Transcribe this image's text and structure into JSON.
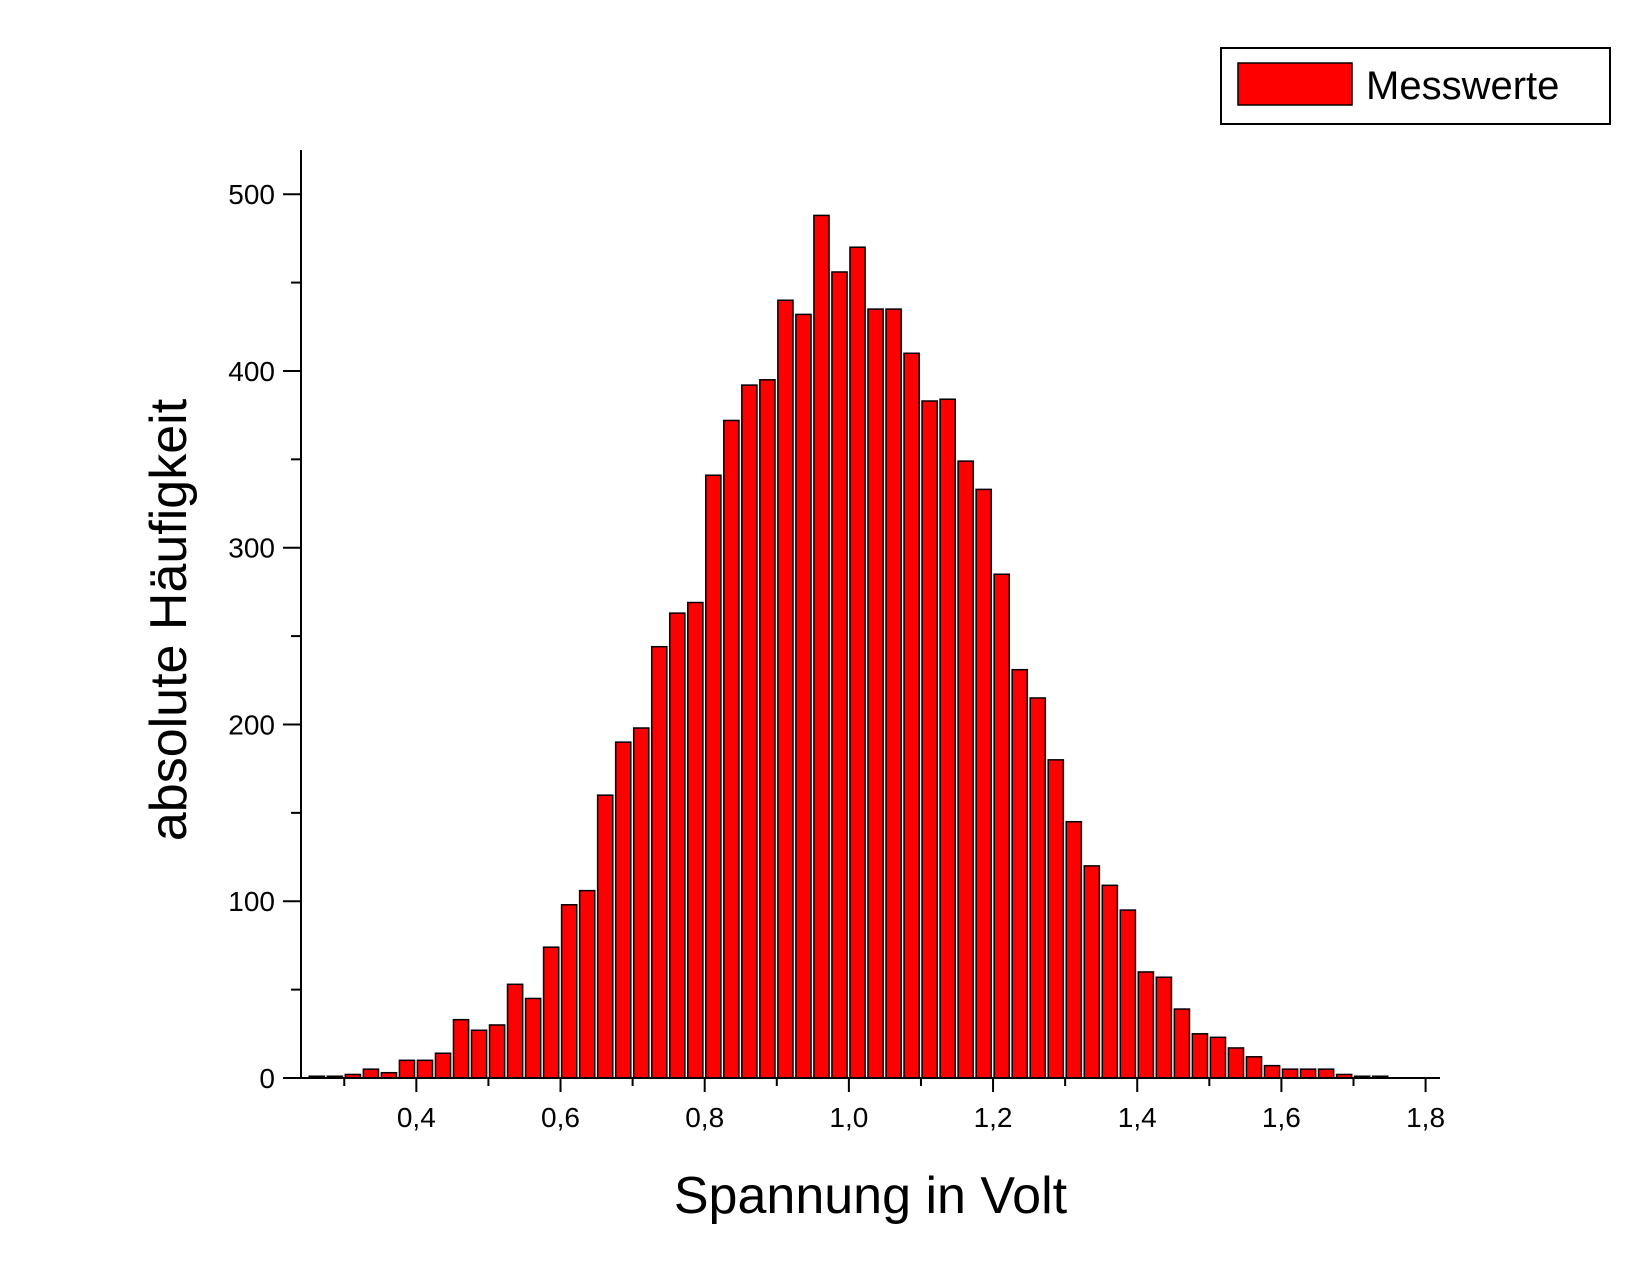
{
  "chart_data": {
    "type": "bar",
    "xlabel": "Spannung in Volt",
    "ylabel": "absolute Häufigkeit",
    "xlim": [
      0.24,
      1.82
    ],
    "ylim": [
      0,
      525
    ],
    "x_ticks": [
      0.4,
      0.6,
      0.8,
      1.0,
      1.2,
      1.4,
      1.6,
      1.8
    ],
    "x_tick_labels": [
      "0,4",
      "0,6",
      "0,8",
      "1,0",
      "1,2",
      "1,4",
      "1,6",
      "1,8"
    ],
    "y_ticks": [
      0,
      100,
      200,
      300,
      400,
      500
    ],
    "y_tick_labels": [
      "0",
      "100",
      "200",
      "300",
      "400",
      "500"
    ],
    "bin_width": 0.025,
    "legend": {
      "position": "top-right",
      "label": "Messwerte"
    },
    "series": [
      {
        "name": "Messwerte",
        "color": "#ff0000",
        "x": [
          0.262,
          0.287,
          0.312,
          0.337,
          0.362,
          0.387,
          0.412,
          0.437,
          0.462,
          0.487,
          0.512,
          0.537,
          0.562,
          0.587,
          0.612,
          0.637,
          0.662,
          0.687,
          0.712,
          0.737,
          0.762,
          0.787,
          0.812,
          0.837,
          0.862,
          0.887,
          0.912,
          0.937,
          0.962,
          0.987,
          1.012,
          1.037,
          1.062,
          1.087,
          1.112,
          1.137,
          1.162,
          1.187,
          1.212,
          1.237,
          1.262,
          1.287,
          1.312,
          1.337,
          1.362,
          1.387,
          1.412,
          1.437,
          1.462,
          1.487,
          1.512,
          1.537,
          1.562,
          1.587,
          1.612,
          1.637,
          1.662,
          1.687,
          1.712,
          1.737
        ],
        "values": [
          1,
          1,
          2,
          5,
          3,
          10,
          10,
          14,
          33,
          27,
          30,
          53,
          45,
          74,
          98,
          106,
          160,
          190,
          198,
          244,
          263,
          269,
          341,
          372,
          392,
          395,
          440,
          432,
          488,
          456,
          470,
          435,
          435,
          410,
          383,
          384,
          349,
          333,
          285,
          231,
          215,
          180,
          145,
          120,
          109,
          95,
          60,
          57,
          39,
          25,
          23,
          17,
          12,
          7,
          5,
          5,
          5,
          2,
          1,
          1
        ]
      }
    ]
  }
}
